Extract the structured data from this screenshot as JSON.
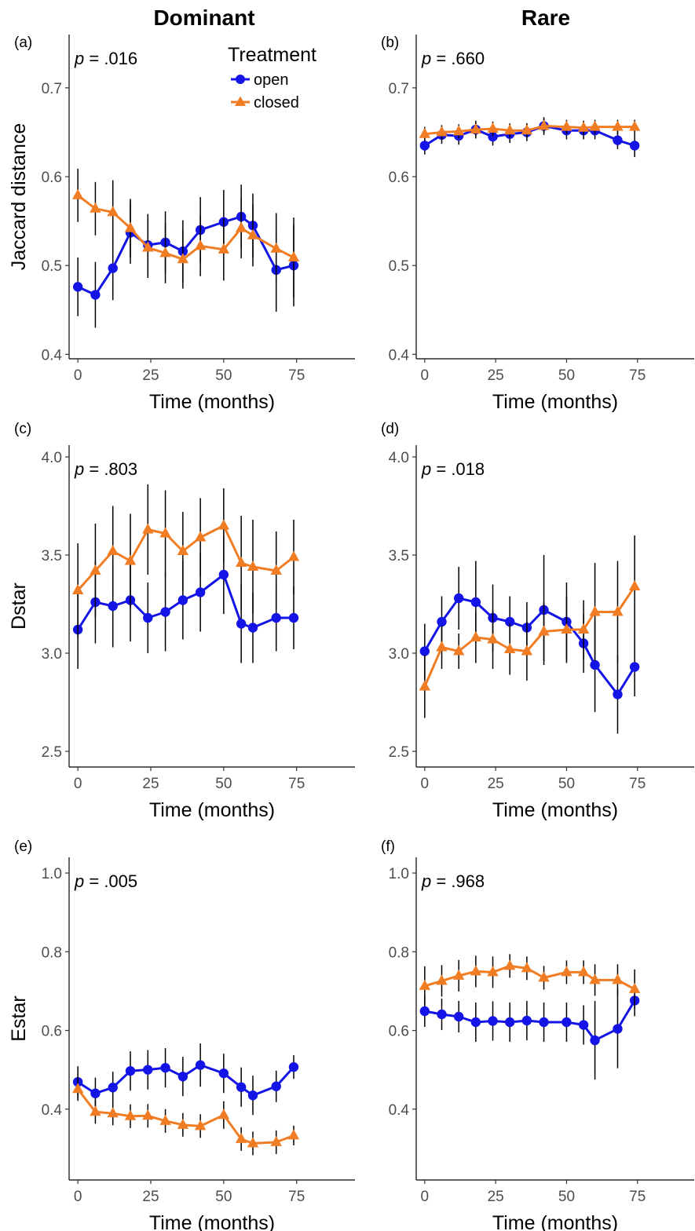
{
  "figure": {
    "column_titles": [
      "Dominant",
      "Rare"
    ],
    "legend": {
      "title": "Treatment",
      "entries": [
        {
          "label": "open",
          "color": "#1414e6",
          "marker": "circle"
        },
        {
          "label": "closed",
          "color": "#f07d24",
          "marker": "triangle"
        }
      ]
    }
  },
  "chart_data": [
    {
      "panel": "(a)",
      "type": "line",
      "column": "Dominant",
      "annotation": {
        "prefix": "p",
        "value": " = .016"
      },
      "xlabel": "Time (months)",
      "ylabel": "Jaccard distance",
      "xlim": [
        -3,
        95
      ],
      "ylim": [
        0.395,
        0.76
      ],
      "xticks": [
        0,
        25,
        50,
        75
      ],
      "xtick_labels": [
        "0",
        "25",
        "50",
        "75"
      ],
      "yticks": [
        0.4,
        0.5,
        0.6,
        0.7
      ],
      "ytick_labels": [
        "0.4",
        "0.5",
        "0.6",
        "0.7"
      ],
      "grid": false,
      "legend": "top-right",
      "series": [
        {
          "name": "open",
          "color": "#1414e6",
          "marker": "circle",
          "x": [
            0,
            6,
            12,
            18,
            24,
            30,
            36,
            42,
            50,
            56,
            60,
            68,
            74
          ],
          "y": [
            0.476,
            0.467,
            0.497,
            0.537,
            0.523,
            0.526,
            0.516,
            0.54,
            0.549,
            0.555,
            0.545,
            0.495,
            0.5
          ],
          "err": [
            0.033,
            0.037,
            0.036,
            0.035,
            0.035,
            0.035,
            0.035,
            0.037,
            0.036,
            0.036,
            0.036,
            0.047,
            0.046
          ]
        },
        {
          "name": "closed",
          "color": "#f07d24",
          "marker": "triangle",
          "x": [
            0,
            6,
            12,
            18,
            24,
            30,
            36,
            42,
            50,
            56,
            60,
            68,
            74
          ],
          "y": [
            0.579,
            0.564,
            0.56,
            0.542,
            0.52,
            0.514,
            0.507,
            0.522,
            0.518,
            0.542,
            0.534,
            0.519,
            0.509
          ],
          "err": [
            0.03,
            0.03,
            0.036,
            0.033,
            0.034,
            0.034,
            0.033,
            0.034,
            0.035,
            0.034,
            0.035,
            0.04,
            0.045
          ]
        }
      ]
    },
    {
      "panel": "(b)",
      "type": "line",
      "column": "Rare",
      "annotation": {
        "prefix": "p",
        "value": " = .660"
      },
      "xlabel": "Time (months)",
      "ylabel": "",
      "xlim": [
        -3,
        95
      ],
      "ylim": [
        0.395,
        0.76
      ],
      "xticks": [
        0,
        25,
        50,
        75
      ],
      "xtick_labels": [
        "0",
        "25",
        "50",
        "75"
      ],
      "yticks": [
        0.4,
        0.5,
        0.6,
        0.7
      ],
      "ytick_labels": [
        "0.4",
        "0.5",
        "0.6",
        "0.7"
      ],
      "grid": false,
      "series": [
        {
          "name": "open",
          "color": "#1414e6",
          "marker": "circle",
          "x": [
            0,
            6,
            12,
            18,
            24,
            30,
            36,
            42,
            50,
            56,
            60,
            68,
            74
          ],
          "y": [
            0.635,
            0.647,
            0.646,
            0.653,
            0.645,
            0.648,
            0.65,
            0.657,
            0.652,
            0.652,
            0.652,
            0.641,
            0.635
          ],
          "err": [
            0.01,
            0.01,
            0.01,
            0.01,
            0.01,
            0.01,
            0.01,
            0.01,
            0.01,
            0.01,
            0.01,
            0.01,
            0.013
          ]
        },
        {
          "name": "closed",
          "color": "#f07d24",
          "marker": "triangle",
          "x": [
            0,
            6,
            12,
            18,
            24,
            30,
            36,
            42,
            50,
            56,
            60,
            68,
            74
          ],
          "y": [
            0.648,
            0.65,
            0.651,
            0.653,
            0.654,
            0.652,
            0.652,
            0.657,
            0.656,
            0.655,
            0.656,
            0.656,
            0.656
          ],
          "err": [
            0.008,
            0.008,
            0.008,
            0.008,
            0.008,
            0.008,
            0.008,
            0.008,
            0.008,
            0.008,
            0.008,
            0.008,
            0.008
          ]
        }
      ]
    },
    {
      "panel": "(c)",
      "type": "line",
      "column": "Dominant",
      "annotation": {
        "prefix": "p",
        "value": " = .803"
      },
      "xlabel": "Time (months)",
      "ylabel": "Dstar",
      "xlim": [
        -3,
        95
      ],
      "ylim": [
        2.42,
        4.06
      ],
      "xticks": [
        0,
        25,
        50,
        75
      ],
      "xtick_labels": [
        "0",
        "25",
        "50",
        "75"
      ],
      "yticks": [
        2.5,
        3.0,
        3.5,
        4.0
      ],
      "ytick_labels": [
        "2.5",
        "3.0",
        "3.5",
        "4.0"
      ],
      "grid": false,
      "series": [
        {
          "name": "open",
          "color": "#1414e6",
          "marker": "circle",
          "x": [
            0,
            6,
            12,
            18,
            24,
            30,
            36,
            42,
            50,
            56,
            60,
            68,
            74
          ],
          "y": [
            3.12,
            3.26,
            3.24,
            3.27,
            3.18,
            3.21,
            3.27,
            3.31,
            3.4,
            3.15,
            3.13,
            3.18,
            3.18
          ],
          "err": [
            0.2,
            0.21,
            0.21,
            0.21,
            0.18,
            0.2,
            0.2,
            0.2,
            0.2,
            0.2,
            0.18,
            0.17,
            0.16
          ]
        },
        {
          "name": "closed",
          "color": "#f07d24",
          "marker": "triangle",
          "x": [
            0,
            6,
            12,
            18,
            24,
            30,
            36,
            42,
            50,
            56,
            60,
            68,
            74
          ],
          "y": [
            3.32,
            3.42,
            3.52,
            3.47,
            3.63,
            3.61,
            3.52,
            3.59,
            3.65,
            3.46,
            3.44,
            3.42,
            3.49
          ],
          "err": [
            0.24,
            0.24,
            0.23,
            0.24,
            0.23,
            0.22,
            0.2,
            0.2,
            0.19,
            0.24,
            0.24,
            0.2,
            0.19
          ]
        }
      ]
    },
    {
      "panel": "(d)",
      "type": "line",
      "column": "Rare",
      "annotation": {
        "prefix": "p",
        "value": " = .018"
      },
      "xlabel": "Time (months)",
      "ylabel": "",
      "xlim": [
        -3,
        95
      ],
      "ylim": [
        2.42,
        4.06
      ],
      "xticks": [
        0,
        25,
        50,
        75
      ],
      "xtick_labels": [
        "0",
        "25",
        "50",
        "75"
      ],
      "yticks": [
        2.5,
        3.0,
        3.5,
        4.0
      ],
      "ytick_labels": [
        "2.5",
        "3.0",
        "3.5",
        "4.0"
      ],
      "grid": false,
      "series": [
        {
          "name": "open",
          "color": "#1414e6",
          "marker": "circle",
          "x": [
            0,
            6,
            12,
            18,
            24,
            30,
            36,
            42,
            50,
            56,
            60,
            68,
            74
          ],
          "y": [
            3.01,
            3.16,
            3.28,
            3.26,
            3.18,
            3.16,
            3.13,
            3.22,
            3.16,
            3.05,
            2.94,
            2.79,
            2.93
          ],
          "err": [
            0.14,
            0.13,
            0.16,
            0.21,
            0.17,
            0.13,
            0.13,
            0.28,
            0.2,
            0.15,
            0.24,
            0.2,
            0.15
          ]
        },
        {
          "name": "closed",
          "color": "#f07d24",
          "marker": "triangle",
          "x": [
            0,
            6,
            12,
            18,
            24,
            30,
            36,
            42,
            50,
            56,
            60,
            68,
            74
          ],
          "y": [
            2.83,
            3.03,
            3.01,
            3.08,
            3.07,
            3.02,
            3.01,
            3.11,
            3.12,
            3.12,
            3.21,
            3.21,
            3.34
          ],
          "err": [
            0.16,
            0.11,
            0.09,
            0.13,
            0.15,
            0.13,
            0.15,
            0.15,
            0.17,
            0.15,
            0.25,
            0.26,
            0.26
          ]
        }
      ]
    },
    {
      "panel": "(e)",
      "type": "line",
      "column": "Dominant",
      "annotation": {
        "prefix": "p",
        "value": " = .005"
      },
      "xlabel": "Time (months)",
      "ylabel": "Estar",
      "xlim": [
        -3,
        95
      ],
      "ylim": [
        0.22,
        1.04
      ],
      "xticks": [
        0,
        25,
        50,
        75
      ],
      "xtick_labels": [
        "0",
        "25",
        "50",
        "75"
      ],
      "yticks": [
        0.4,
        0.6,
        0.8,
        1.0
      ],
      "ytick_labels": [
        "0.4",
        "0.6",
        "0.8",
        "1.0"
      ],
      "grid": false,
      "series": [
        {
          "name": "open",
          "color": "#1414e6",
          "marker": "circle",
          "x": [
            0,
            6,
            12,
            18,
            24,
            30,
            36,
            42,
            50,
            56,
            60,
            68,
            74
          ],
          "y": [
            0.469,
            0.44,
            0.455,
            0.497,
            0.5,
            0.505,
            0.483,
            0.512,
            0.491,
            0.456,
            0.435,
            0.458,
            0.507
          ],
          "err": [
            0.04,
            0.04,
            0.04,
            0.05,
            0.05,
            0.05,
            0.05,
            0.055,
            0.05,
            0.05,
            0.05,
            0.04,
            0.03
          ]
        },
        {
          "name": "closed",
          "color": "#f07d24",
          "marker": "triangle",
          "x": [
            0,
            6,
            12,
            18,
            24,
            30,
            36,
            42,
            50,
            56,
            60,
            68,
            74
          ],
          "y": [
            0.451,
            0.393,
            0.389,
            0.382,
            0.383,
            0.37,
            0.36,
            0.357,
            0.385,
            0.324,
            0.313,
            0.316,
            0.333
          ],
          "err": [
            0.03,
            0.03,
            0.03,
            0.03,
            0.03,
            0.03,
            0.03,
            0.03,
            0.035,
            0.03,
            0.03,
            0.03,
            0.025
          ]
        }
      ]
    },
    {
      "panel": "(f)",
      "type": "line",
      "column": "Rare",
      "annotation": {
        "prefix": "p",
        "value": " = .968"
      },
      "xlabel": "Time (months)",
      "ylabel": "",
      "xlim": [
        -3,
        95
      ],
      "ylim": [
        0.22,
        1.04
      ],
      "xticks": [
        0,
        25,
        50,
        75
      ],
      "xtick_labels": [
        "0",
        "25",
        "50",
        "75"
      ],
      "yticks": [
        0.4,
        0.6,
        0.8,
        1.0
      ],
      "ytick_labels": [
        "0.4",
        "0.6",
        "0.8",
        "1.0"
      ],
      "grid": false,
      "series": [
        {
          "name": "open",
          "color": "#1414e6",
          "marker": "circle",
          "x": [
            0,
            6,
            12,
            18,
            24,
            30,
            36,
            42,
            50,
            56,
            60,
            68,
            74
          ],
          "y": [
            0.649,
            0.641,
            0.635,
            0.621,
            0.624,
            0.621,
            0.625,
            0.621,
            0.621,
            0.614,
            0.575,
            0.604,
            0.676
          ],
          "err": [
            0.04,
            0.04,
            0.04,
            0.05,
            0.05,
            0.05,
            0.05,
            0.05,
            0.05,
            0.05,
            0.1,
            0.1,
            0.04
          ]
        },
        {
          "name": "closed",
          "color": "#f07d24",
          "marker": "triangle",
          "x": [
            0,
            6,
            12,
            18,
            24,
            30,
            36,
            42,
            50,
            56,
            60,
            68,
            74
          ],
          "y": [
            0.713,
            0.726,
            0.739,
            0.75,
            0.748,
            0.764,
            0.758,
            0.734,
            0.748,
            0.748,
            0.728,
            0.728,
            0.705
          ],
          "err": [
            0.05,
            0.04,
            0.04,
            0.04,
            0.04,
            0.03,
            0.03,
            0.03,
            0.03,
            0.03,
            0.04,
            0.04,
            0.05
          ]
        }
      ]
    }
  ]
}
